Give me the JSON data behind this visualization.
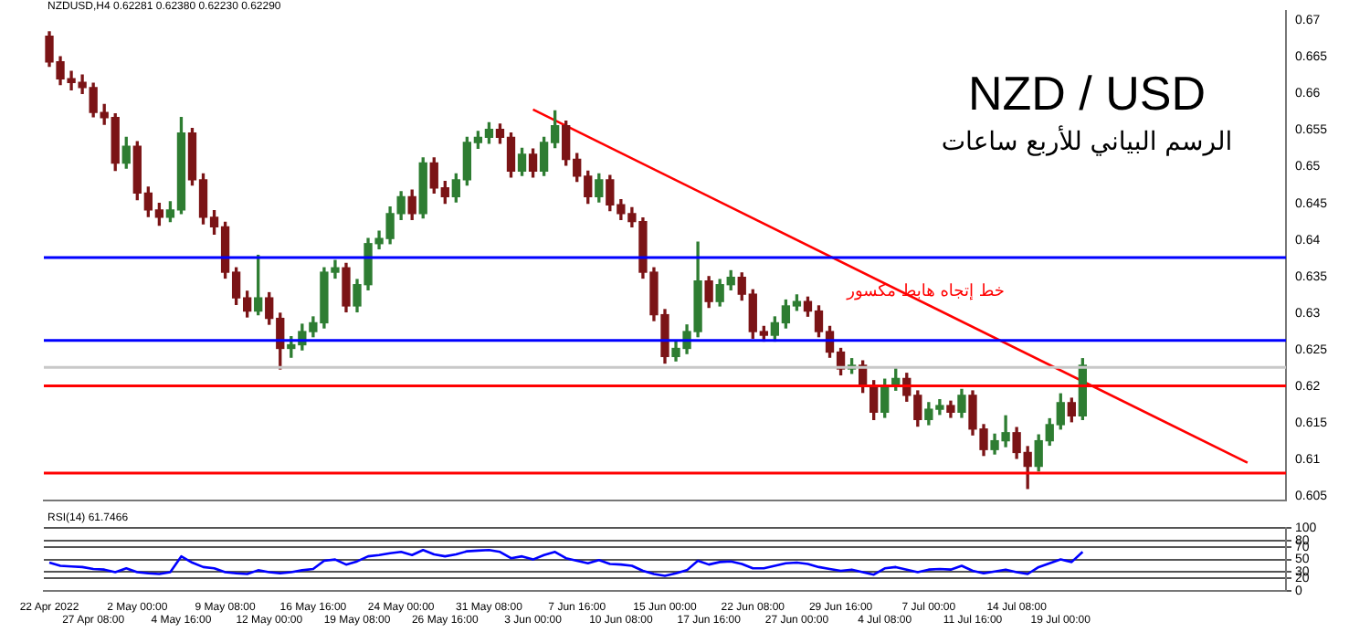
{
  "chart_data": [
    {
      "type": "candlestick",
      "title": "NZD / USD",
      "subtitle": "الرسم البياني للأربع ساعات",
      "annotations": [
        "NZDUSD,H4  0.62281 0.62380 0.62230 0.62290",
        {
          "text": "خط إتجاه هابط مكسور",
          "y": 0.6324
        }
      ],
      "categories": [
        null,
        null,
        null,
        null,
        null,
        null,
        null,
        null,
        null,
        null,
        null,
        null,
        null,
        null,
        null,
        null,
        null,
        null,
        null,
        null,
        null,
        null,
        null,
        null,
        null,
        null,
        null,
        null,
        null,
        null,
        null,
        null,
        null,
        null,
        null,
        null,
        null,
        null,
        null,
        null,
        null,
        null,
        null,
        null,
        null,
        null,
        null,
        null,
        null,
        null,
        null,
        null,
        null,
        null,
        null,
        null,
        null,
        null,
        null,
        null,
        null,
        null,
        null,
        null,
        null,
        null,
        null,
        null,
        null,
        null,
        null,
        null,
        null,
        null,
        null,
        null,
        null,
        null,
        null,
        null,
        null,
        null,
        null,
        null,
        null,
        null,
        null,
        null,
        null,
        null,
        null,
        null,
        null,
        null,
        null,
        null,
        null,
        null,
        null,
        null,
        null,
        null,
        null,
        null,
        null,
        null,
        null,
        null,
        null,
        null,
        null,
        null,
        null
      ],
      "ohlc": [
        [
          0.6678,
          0.6684,
          0.6637,
          0.6643
        ],
        [
          0.6643,
          0.665,
          0.6612,
          0.662
        ],
        [
          0.662,
          0.663,
          0.6605,
          0.6615
        ],
        [
          0.6615,
          0.6625,
          0.66,
          0.6608
        ],
        [
          0.6608,
          0.6614,
          0.6568,
          0.6574
        ],
        [
          0.6574,
          0.6585,
          0.6558,
          0.6567
        ],
        [
          0.6567,
          0.6572,
          0.6495,
          0.6505
        ],
        [
          0.6505,
          0.654,
          0.6498,
          0.6528
        ],
        [
          0.6528,
          0.6534,
          0.6455,
          0.6464
        ],
        [
          0.6464,
          0.6472,
          0.6432,
          0.6441
        ],
        [
          0.6441,
          0.645,
          0.642,
          0.6431
        ],
        [
          0.6431,
          0.6452,
          0.6425,
          0.6441
        ],
        [
          0.6441,
          0.6567,
          0.6436,
          0.6546
        ],
        [
          0.6546,
          0.6552,
          0.6475,
          0.6482
        ],
        [
          0.6482,
          0.649,
          0.6422,
          0.6431
        ],
        [
          0.6431,
          0.644,
          0.6408,
          0.6418
        ],
        [
          0.6418,
          0.6424,
          0.6348,
          0.6356
        ],
        [
          0.6356,
          0.6362,
          0.6312,
          0.6321
        ],
        [
          0.6321,
          0.633,
          0.6295,
          0.6303
        ],
        [
          0.6303,
          0.6379,
          0.6298,
          0.6321
        ],
        [
          0.6321,
          0.6328,
          0.6285,
          0.6293
        ],
        [
          0.6293,
          0.63,
          0.6224,
          0.6252
        ],
        [
          0.6252,
          0.6268,
          0.624,
          0.6257
        ],
        [
          0.6257,
          0.6285,
          0.625,
          0.6275
        ],
        [
          0.6275,
          0.6295,
          0.6268,
          0.6287
        ],
        [
          0.6287,
          0.6362,
          0.628,
          0.6356
        ],
        [
          0.6356,
          0.6372,
          0.6348,
          0.6362
        ],
        [
          0.6362,
          0.6368,
          0.6302,
          0.631
        ],
        [
          0.631,
          0.6346,
          0.6302,
          0.6339
        ],
        [
          0.6339,
          0.6402,
          0.6332,
          0.6395
        ],
        [
          0.6395,
          0.6412,
          0.6388,
          0.6402
        ],
        [
          0.6402,
          0.6445,
          0.6395,
          0.6436
        ],
        [
          0.6436,
          0.6466,
          0.6428,
          0.6459
        ],
        [
          0.6459,
          0.6468,
          0.6428,
          0.6436
        ],
        [
          0.6436,
          0.6512,
          0.643,
          0.6505
        ],
        [
          0.6505,
          0.6512,
          0.6464,
          0.6471
        ],
        [
          0.6471,
          0.648,
          0.645,
          0.6459
        ],
        [
          0.6459,
          0.649,
          0.6452,
          0.6482
        ],
        [
          0.6482,
          0.654,
          0.6475,
          0.6533
        ],
        [
          0.6533,
          0.6548,
          0.6525,
          0.654
        ],
        [
          0.654,
          0.656,
          0.6532,
          0.6551
        ],
        [
          0.6551,
          0.6558,
          0.6532,
          0.654
        ],
        [
          0.654,
          0.6546,
          0.6486,
          0.6494
        ],
        [
          0.6494,
          0.6525,
          0.6488,
          0.6517
        ],
        [
          0.6517,
          0.6524,
          0.6486,
          0.6494
        ],
        [
          0.6494,
          0.654,
          0.6488,
          0.6533
        ],
        [
          0.6533,
          0.6576,
          0.6526,
          0.6556
        ],
        [
          0.6556,
          0.6562,
          0.6502,
          0.651
        ],
        [
          0.651,
          0.6518,
          0.648,
          0.6487
        ],
        [
          0.6487,
          0.6494,
          0.645,
          0.6459
        ],
        [
          0.6459,
          0.649,
          0.6452,
          0.6482
        ],
        [
          0.6482,
          0.6488,
          0.644,
          0.6448
        ],
        [
          0.6448,
          0.6455,
          0.6428,
          0.6436
        ],
        [
          0.6436,
          0.6444,
          0.6418,
          0.6425
        ],
        [
          0.6425,
          0.643,
          0.6348,
          0.6356
        ],
        [
          0.6356,
          0.6362,
          0.629,
          0.6298
        ],
        [
          0.6298,
          0.6305,
          0.6232,
          0.6241
        ],
        [
          0.6241,
          0.6262,
          0.6235,
          0.6252
        ],
        [
          0.6252,
          0.6284,
          0.6245,
          0.6275
        ],
        [
          0.6275,
          0.6397,
          0.6268,
          0.6344
        ],
        [
          0.6344,
          0.635,
          0.6308,
          0.6316
        ],
        [
          0.6316,
          0.6346,
          0.631,
          0.6339
        ],
        [
          0.6339,
          0.6358,
          0.6332,
          0.6349
        ],
        [
          0.6349,
          0.6355,
          0.6318,
          0.6326
        ],
        [
          0.6326,
          0.6332,
          0.6266,
          0.6275
        ],
        [
          0.6275,
          0.6282,
          0.6262,
          0.627
        ],
        [
          0.627,
          0.6295,
          0.6262,
          0.6287
        ],
        [
          0.6287,
          0.6318,
          0.628,
          0.631
        ],
        [
          0.631,
          0.6325,
          0.6304,
          0.6316
        ],
        [
          0.6316,
          0.6322,
          0.6296,
          0.6303
        ],
        [
          0.6303,
          0.631,
          0.6268,
          0.6275
        ],
        [
          0.6275,
          0.6282,
          0.624,
          0.6247
        ],
        [
          0.6247,
          0.6252,
          0.6216,
          0.6224
        ],
        [
          0.6224,
          0.6238,
          0.6218,
          0.6229
        ],
        [
          0.6229,
          0.6235,
          0.6192,
          0.6201
        ],
        [
          0.6201,
          0.6208,
          0.6155,
          0.6165
        ],
        [
          0.6165,
          0.621,
          0.6158,
          0.6201
        ],
        [
          0.6201,
          0.6225,
          0.6195,
          0.6211
        ],
        [
          0.6211,
          0.6218,
          0.618,
          0.6188
        ],
        [
          0.6188,
          0.6194,
          0.6146,
          0.6155
        ],
        [
          0.6155,
          0.6178,
          0.6148,
          0.6169
        ],
        [
          0.6169,
          0.6182,
          0.6162,
          0.6174
        ],
        [
          0.6174,
          0.618,
          0.6158,
          0.6165
        ],
        [
          0.6165,
          0.6196,
          0.6158,
          0.6188
        ],
        [
          0.6188,
          0.6194,
          0.6134,
          0.6142
        ],
        [
          0.6142,
          0.6148,
          0.6106,
          0.6114
        ],
        [
          0.6114,
          0.6135,
          0.6108,
          0.6126
        ],
        [
          0.6126,
          0.616,
          0.6118,
          0.6137
        ],
        [
          0.6137,
          0.6144,
          0.6102,
          0.611
        ],
        [
          0.611,
          0.6118,
          0.6061,
          0.6091
        ],
        [
          0.6091,
          0.6134,
          0.6085,
          0.6126
        ],
        [
          0.6126,
          0.6156,
          0.612,
          0.6148
        ],
        [
          0.6148,
          0.619,
          0.6142,
          0.6178
        ],
        [
          0.6178,
          0.6184,
          0.6152,
          0.616
        ],
        [
          0.616,
          0.6238,
          0.6155,
          0.6229
        ],
        null,
        null,
        null,
        null,
        null,
        null,
        null,
        null,
        null,
        null,
        null,
        null,
        null,
        null,
        null,
        null,
        null,
        null
      ],
      "series": [
        {
          "type": "line",
          "color": "#ff0000",
          "values": [
            null,
            null,
            null,
            null,
            null,
            null,
            null,
            null,
            null,
            null,
            null,
            null,
            null,
            null,
            null,
            null,
            null,
            null,
            null,
            null,
            null,
            null,
            null,
            null,
            null,
            null,
            null,
            null,
            null,
            null,
            null,
            null,
            null,
            null,
            null,
            null,
            null,
            null,
            null,
            null,
            null,
            null,
            null,
            null,
            0.6578,
            null,
            null,
            null,
            null,
            null,
            null,
            null,
            null,
            null,
            null,
            null,
            null,
            null,
            null,
            null,
            null,
            null,
            null,
            null,
            null,
            null,
            null,
            null,
            null,
            null,
            null,
            null,
            null,
            null,
            null,
            null,
            null,
            null,
            null,
            null,
            null,
            null,
            null,
            null,
            null,
            null,
            null,
            null,
            null,
            null,
            null,
            null,
            null,
            null,
            null,
            null,
            null,
            null,
            null,
            null,
            null,
            null,
            null,
            null,
            null,
            null,
            null,
            null,
            null,
            0.6096,
            null,
            null,
            null
          ]
        }
      ],
      "ref_lines": [
        {
          "axis": "y",
          "value": 0.6376,
          "color": "#0000ff"
        },
        {
          "axis": "y",
          "value": 0.6263,
          "color": "#0000ff"
        },
        {
          "axis": "y",
          "value": 0.6226,
          "color": "#c8c8c8"
        },
        {
          "axis": "y",
          "value": 0.6201,
          "color": "#ff0000"
        },
        {
          "axis": "y",
          "value": 0.6082,
          "color": "#ff0000"
        }
      ],
      "ylim": [
        0.6045,
        0.6712
      ],
      "yticks": [
        0.605,
        0.61,
        0.615,
        0.62,
        0.625,
        0.63,
        0.635,
        0.64,
        0.645,
        0.65,
        0.655,
        0.66,
        0.665,
        0.67
      ],
      "tick_labels": "y",
      "marker": "none",
      "legend": false
    },
    {
      "type": "line",
      "title": "RSI(14) 61.7466",
      "categories": [
        "22 Apr 2022",
        null,
        null,
        null,
        "27 Apr 08:00",
        null,
        null,
        null,
        "2 May 00:00",
        null,
        null,
        null,
        "4 May 16:00",
        null,
        null,
        null,
        "9 May 08:00",
        null,
        null,
        null,
        "12 May 00:00",
        null,
        null,
        null,
        "16 May 16:00",
        null,
        null,
        null,
        "19 May 08:00",
        null,
        null,
        null,
        "24 May 00:00",
        null,
        null,
        null,
        "26 May 16:00",
        null,
        null,
        null,
        "31 May 08:00",
        null,
        null,
        null,
        "3 Jun 00:00",
        null,
        null,
        null,
        "7 Jun 16:00",
        null,
        null,
        null,
        "10 Jun 08:00",
        null,
        null,
        null,
        "15 Jun 00:00",
        null,
        null,
        null,
        "17 Jun 16:00",
        null,
        null,
        null,
        "22 Jun 08:00",
        null,
        null,
        null,
        "27 Jun 00:00",
        null,
        null,
        null,
        "29 Jun 16:00",
        null,
        null,
        null,
        "4 Jul 08:00",
        null,
        null,
        null,
        "7 Jul 00:00",
        null,
        null,
        null,
        "11 Jul 16:00",
        null,
        null,
        null,
        "14 Jul 08:00",
        null,
        null,
        null,
        "19 Jul 00:00",
        null,
        null,
        null,
        null,
        null,
        null,
        null,
        null,
        null,
        null,
        null,
        null,
        null,
        null,
        null,
        null,
        null,
        null,
        null,
        null
      ],
      "series": [
        {
          "color": "#0000ff",
          "values": [
            45,
            40,
            39,
            38,
            35,
            34,
            30,
            36,
            30,
            28,
            27,
            30,
            55,
            45,
            38,
            36,
            30,
            28,
            27,
            33,
            30,
            28,
            30,
            33,
            35,
            48,
            50,
            42,
            47,
            55,
            57,
            60,
            62,
            57,
            65,
            58,
            55,
            58,
            63,
            64,
            65,
            62,
            52,
            55,
            50,
            57,
            62,
            52,
            48,
            44,
            49,
            43,
            42,
            40,
            32,
            27,
            24,
            28,
            33,
            48,
            42,
            46,
            47,
            43,
            36,
            36,
            40,
            44,
            45,
            43,
            38,
            35,
            32,
            34,
            30,
            26,
            36,
            38,
            34,
            30,
            34,
            35,
            34,
            40,
            32,
            28,
            31,
            34,
            30,
            27,
            38,
            44,
            50,
            46,
            62,
            null,
            null,
            null,
            null,
            null,
            null,
            null,
            null,
            null,
            null,
            null,
            null,
            null,
            null,
            null,
            null,
            null,
            null
          ]
        }
      ],
      "ylim": [
        0,
        100
      ],
      "yticks": [
        0,
        20,
        30,
        50,
        70,
        80,
        100
      ],
      "grid": "y",
      "marker": "none",
      "legend": false
    }
  ]
}
